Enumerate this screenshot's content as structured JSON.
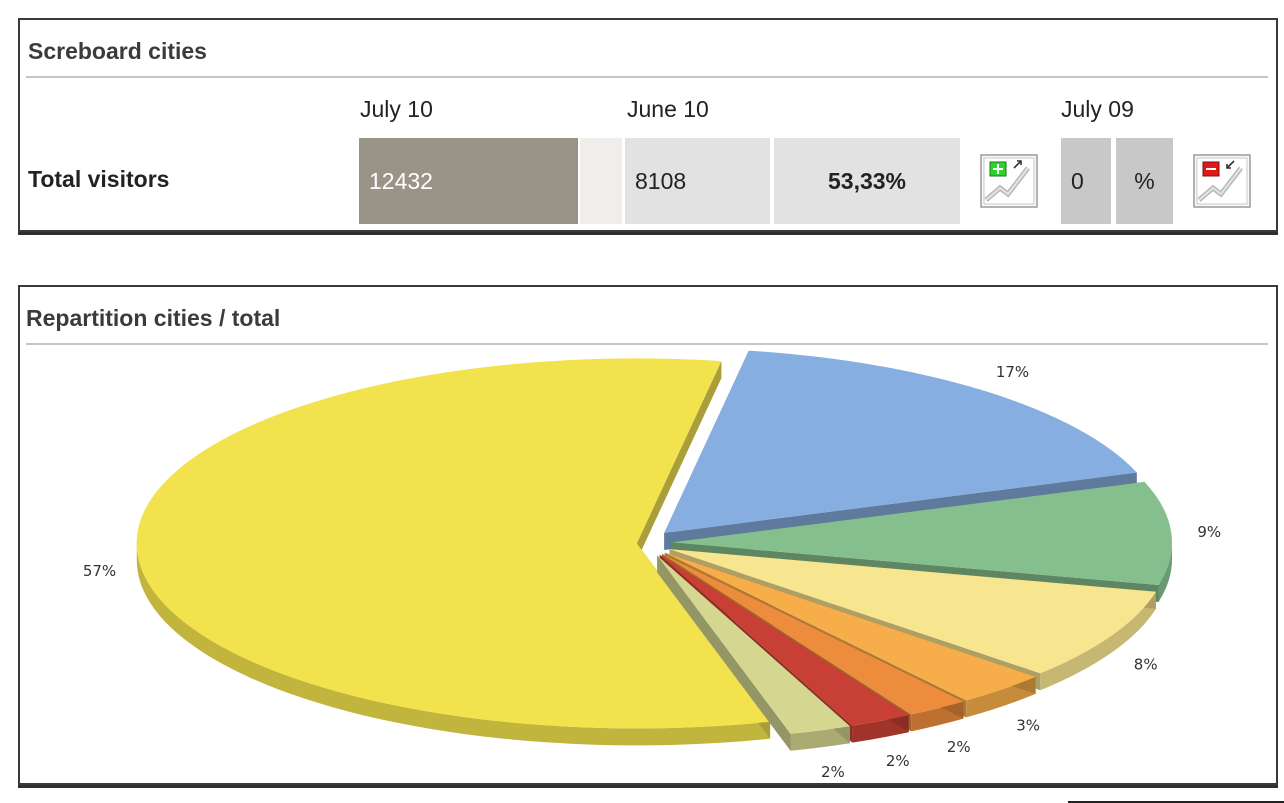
{
  "scoreboard": {
    "title": "Screboard cities",
    "columns": {
      "current": "July 10",
      "previous": "June 10",
      "last_year": "July 09"
    },
    "row_label": "Total visitors",
    "current_value": "12432",
    "previous_value": "8108",
    "change_previous": "53,33%",
    "last_year_value": "0",
    "last_year_change": "%",
    "icons": [
      "chart-increase-icon",
      "chart-decrease-icon"
    ]
  },
  "repartition": {
    "title": "Repartition cities / total"
  },
  "chart_data": {
    "type": "pie",
    "title": "Repartition cities / total",
    "style": "3d-exploded",
    "values": [
      57,
      17,
      9,
      8,
      3,
      2,
      2,
      2
    ],
    "labels": [
      "57%",
      "17%",
      "9%",
      "8%",
      "3%",
      "2%",
      "2%",
      "2%"
    ],
    "colors": [
      "#f2e24e",
      "#86aee0",
      "#86bf8e",
      "#f8e58f",
      "#f7ae4a",
      "#ec8c3c",
      "#c84035",
      "#d5d690"
    ]
  }
}
